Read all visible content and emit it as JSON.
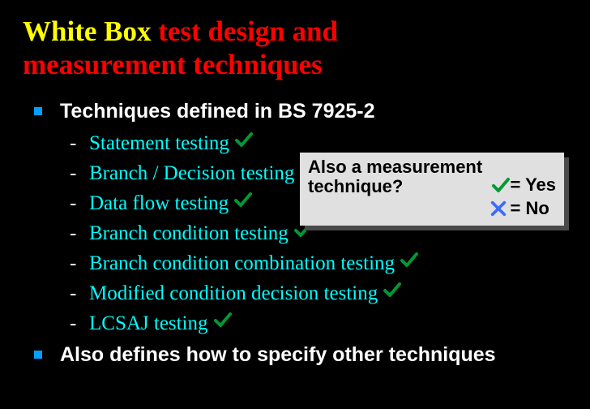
{
  "title_part1": "White Box",
  "title_part2": " test design and",
  "title_line2": "measurement techniques",
  "bullet1": "Techniques defined in BS 7925-2",
  "bullet2": "Also defines how to specify other techniques",
  "techniques": [
    {
      "label": "Statement testing",
      "check": true
    },
    {
      "label": "Branch / Decision testing",
      "check": true
    },
    {
      "label": "Data flow testing",
      "check": true
    },
    {
      "label": "Branch condition testing",
      "check": true
    },
    {
      "label": "Branch condition combination testing",
      "check": true
    },
    {
      "label": "Modified condition decision testing",
      "check": true
    },
    {
      "label": "LCSAJ testing",
      "check": true
    }
  ],
  "legend": {
    "question_line1": "Also a measurement",
    "question_line2": "technique?",
    "yes_label": "= Yes",
    "no_label": "= No"
  },
  "colors": {
    "check": "#009933",
    "cross": "#3b6bff",
    "background": "#000000",
    "title_part1": "#ffff00",
    "title_rest": "#ff0000",
    "bullet_text": "#ffffff",
    "sub_text": "#00ffff",
    "bullet_square": "#00a0ff",
    "legend_bg": "#e0e0e0",
    "legend_shadow": "#4a4a4a"
  },
  "check_svg_size": 24,
  "cross_svg_size": 22
}
